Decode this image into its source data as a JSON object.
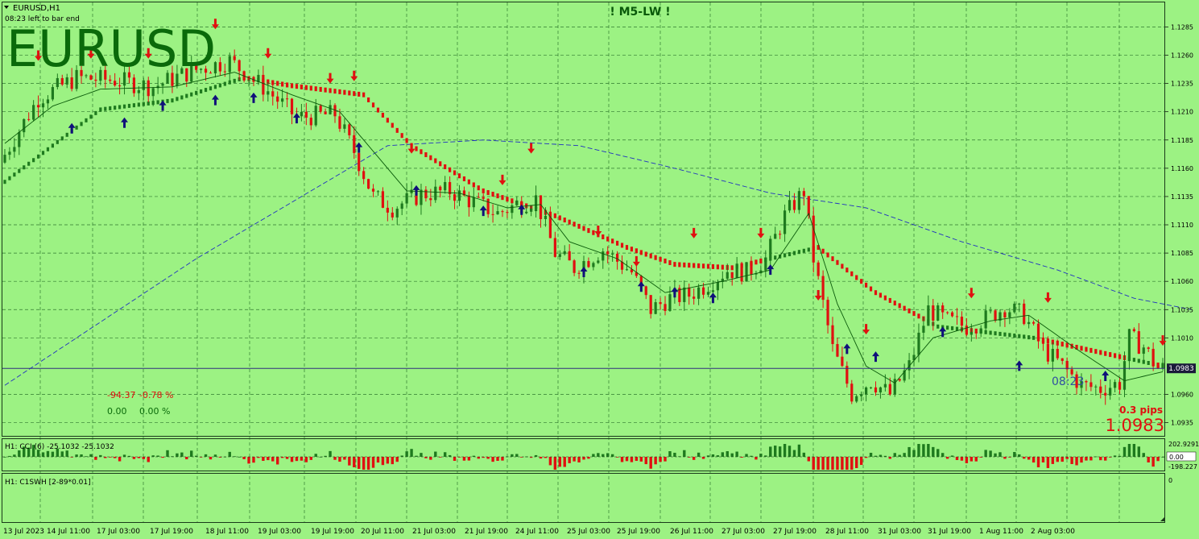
{
  "header": {
    "symbol_timeframe": "EURUSD,H1",
    "bar_timer": "08:23 left to bar end",
    "indicator_title": "! M5-LW !",
    "watermark": "EURUSD"
  },
  "stats": {
    "line1_pips": "-94.37",
    "line1_pct": "-0.78 %",
    "line2_pips": "0.00",
    "line2_pct": "0.00 %"
  },
  "info": {
    "candle_timer": "08:23",
    "spread": "0.3 pips",
    "price_big": "1.0983"
  },
  "colors": {
    "background": "#9cf283",
    "grid": "#2f7a2f",
    "bull_candle": "#1e7a1e",
    "bear_candle": "#e01010",
    "up_arrow": "#10107a",
    "down_arrow": "#e01010",
    "slow_ma": "#2030c0",
    "fast_ma": "#0a5a0a"
  },
  "chart_data": {
    "type": "candlestick",
    "symbol": "EURUSD",
    "timeframe": "H1",
    "current_price": 1.0983,
    "current_price_label": "1.0983",
    "y_ticks": [
      "1.1285",
      "1.1260",
      "1.1235",
      "1.1210",
      "1.1185",
      "1.1160",
      "1.1135",
      "1.1110",
      "1.1085",
      "1.1060",
      "1.1035",
      "1.1010",
      "1.0960",
      "1.0935"
    ],
    "ylim": [
      1.0924,
      1.1306
    ],
    "x_labels": [
      "13 Jul 2023",
      "14 Jul 11:00",
      "17 Jul 03:00",
      "17 Jul 19:00",
      "18 Jul 11:00",
      "19 Jul 03:00",
      "19 Jul 19:00",
      "20 Jul 11:00",
      "21 Jul 03:00",
      "21 Jul 19:00",
      "24 Jul 11:00",
      "25 Jul 03:00",
      "25 Jul 19:00",
      "26 Jul 11:00",
      "27 Jul 03:00",
      "27 Jul 19:00",
      "28 Jul 11:00",
      "31 Jul 03:00",
      "31 Jul 19:00",
      "1 Aug 11:00",
      "2 Aug 03:00"
    ],
    "price_path": [
      [
        0,
        1.1165
      ],
      [
        8,
        1.1222
      ],
      [
        16,
        1.124
      ],
      [
        24,
        1.1238
      ],
      [
        32,
        1.1232
      ],
      [
        40,
        1.1246
      ],
      [
        48,
        1.1255
      ],
      [
        55,
        1.1232
      ],
      [
        62,
        1.1205
      ],
      [
        70,
        1.1208
      ],
      [
        74,
        1.1175
      ],
      [
        78,
        1.1135
      ],
      [
        82,
        1.1125
      ],
      [
        88,
        1.1137
      ],
      [
        94,
        1.114
      ],
      [
        100,
        1.1128
      ],
      [
        104,
        1.112
      ],
      [
        108,
        1.1128
      ],
      [
        112,
        1.1133
      ],
      [
        116,
        1.1085
      ],
      [
        120,
        1.1072
      ],
      [
        126,
        1.1088
      ],
      [
        132,
        1.1068
      ],
      [
        136,
        1.1035
      ],
      [
        140,
        1.1045
      ],
      [
        144,
        1.1048
      ],
      [
        148,
        1.1058
      ],
      [
        152,
        1.107
      ],
      [
        156,
        1.1068
      ],
      [
        160,
        1.108
      ],
      [
        164,
        1.1118
      ],
      [
        168,
        1.114
      ],
      [
        170,
        1.108
      ],
      [
        174,
        1.1
      ],
      [
        178,
        1.096
      ],
      [
        182,
        1.0972
      ],
      [
        186,
        1.096
      ],
      [
        190,
        1.0985
      ],
      [
        194,
        1.1035
      ],
      [
        198,
        1.1025
      ],
      [
        202,
        1.102
      ],
      [
        206,
        1.1027
      ],
      [
        210,
        1.1037
      ],
      [
        214,
        1.103
      ],
      [
        218,
        1.1
      ],
      [
        222,
        1.0985
      ],
      [
        226,
        1.0968
      ],
      [
        230,
        1.0965
      ],
      [
        234,
        1.097
      ],
      [
        236,
        1.101
      ],
      [
        239,
        1.1002
      ],
      [
        242,
        1.0983
      ]
    ],
    "slow_ma_path": [
      [
        0,
        1.0968
      ],
      [
        40,
        1.108
      ],
      [
        80,
        1.118
      ],
      [
        100,
        1.1185
      ],
      [
        120,
        1.118
      ],
      [
        140,
        1.116
      ],
      [
        160,
        1.1138
      ],
      [
        180,
        1.1125
      ],
      [
        200,
        1.1095
      ],
      [
        220,
        1.107
      ],
      [
        236,
        1.1045
      ],
      [
        248,
        1.1035
      ]
    ],
    "fast_ma_path": [
      [
        0,
        1.1182
      ],
      [
        10,
        1.1215
      ],
      [
        20,
        1.123
      ],
      [
        35,
        1.1232
      ],
      [
        48,
        1.1245
      ],
      [
        60,
        1.1225
      ],
      [
        70,
        1.121
      ],
      [
        76,
        1.118
      ],
      [
        84,
        1.114
      ],
      [
        95,
        1.1138
      ],
      [
        105,
        1.1125
      ],
      [
        112,
        1.1128
      ],
      [
        118,
        1.1095
      ],
      [
        128,
        1.108
      ],
      [
        138,
        1.105
      ],
      [
        150,
        1.106
      ],
      [
        160,
        1.107
      ],
      [
        168,
        1.112
      ],
      [
        174,
        1.104
      ],
      [
        180,
        1.0985
      ],
      [
        186,
        1.097
      ],
      [
        194,
        1.101
      ],
      [
        206,
        1.1025
      ],
      [
        214,
        1.103
      ],
      [
        224,
        1.1
      ],
      [
        234,
        1.0972
      ],
      [
        242,
        1.098
      ]
    ],
    "support_line": [
      [
        0,
        1.1148
      ],
      [
        20,
        1.1212
      ],
      [
        35,
        1.122
      ],
      [
        50,
        1.124
      ],
      [
        60,
        1.1233
      ],
      [
        75,
        1.1225
      ],
      [
        85,
        1.118
      ],
      [
        100,
        1.114
      ],
      [
        115,
        1.1118
      ],
      [
        130,
        1.109
      ],
      [
        140,
        1.1075
      ],
      [
        152,
        1.1072
      ],
      [
        162,
        1.1082
      ],
      [
        170,
        1.109
      ],
      [
        182,
        1.105
      ],
      [
        195,
        1.102
      ],
      [
        205,
        1.1015
      ],
      [
        215,
        1.101
      ],
      [
        228,
        1.0998
      ],
      [
        242,
        1.0985
      ]
    ],
    "up_arrows": [
      [
        14,
        1.1195
      ],
      [
        25,
        1.12
      ],
      [
        33,
        1.1215
      ],
      [
        44,
        1.122
      ],
      [
        52,
        1.1222
      ],
      [
        61,
        1.1204
      ],
      [
        74,
        1.1178
      ],
      [
        86,
        1.114
      ],
      [
        100,
        1.1122
      ],
      [
        108,
        1.1123
      ],
      [
        121,
        1.1068
      ],
      [
        133,
        1.1055
      ],
      [
        140,
        1.105
      ],
      [
        148,
        1.1045
      ],
      [
        160,
        1.107
      ],
      [
        176,
        1.1
      ],
      [
        182,
        1.0993
      ],
      [
        196,
        1.1015
      ],
      [
        212,
        1.0985
      ],
      [
        230,
        1.0976
      ]
    ],
    "down_arrows": [
      [
        7,
        1.126
      ],
      [
        18,
        1.1262
      ],
      [
        30,
        1.1262
      ],
      [
        44,
        1.1288
      ],
      [
        55,
        1.1262
      ],
      [
        68,
        1.124
      ],
      [
        73,
        1.1242
      ],
      [
        85,
        1.1178
      ],
      [
        104,
        1.115
      ],
      [
        110,
        1.1178
      ],
      [
        124,
        1.1105
      ],
      [
        132,
        1.1078
      ],
      [
        144,
        1.1103
      ],
      [
        158,
        1.1103
      ],
      [
        170,
        1.1048
      ],
      [
        180,
        1.1018
      ],
      [
        202,
        1.105
      ],
      [
        218,
        1.1046
      ],
      [
        242,
        1.1008
      ]
    ],
    "cci": {
      "label": "H1: CCI (6) -25.1032 -25.1032",
      "name": "CCI (6)",
      "value": -25.1032,
      "ticks": [
        "202.9291",
        "0.00",
        "-198.227"
      ]
    },
    "sub2": {
      "label": "H1: C1SWH [2-89*0.01]",
      "ticks": [
        "0"
      ]
    }
  }
}
